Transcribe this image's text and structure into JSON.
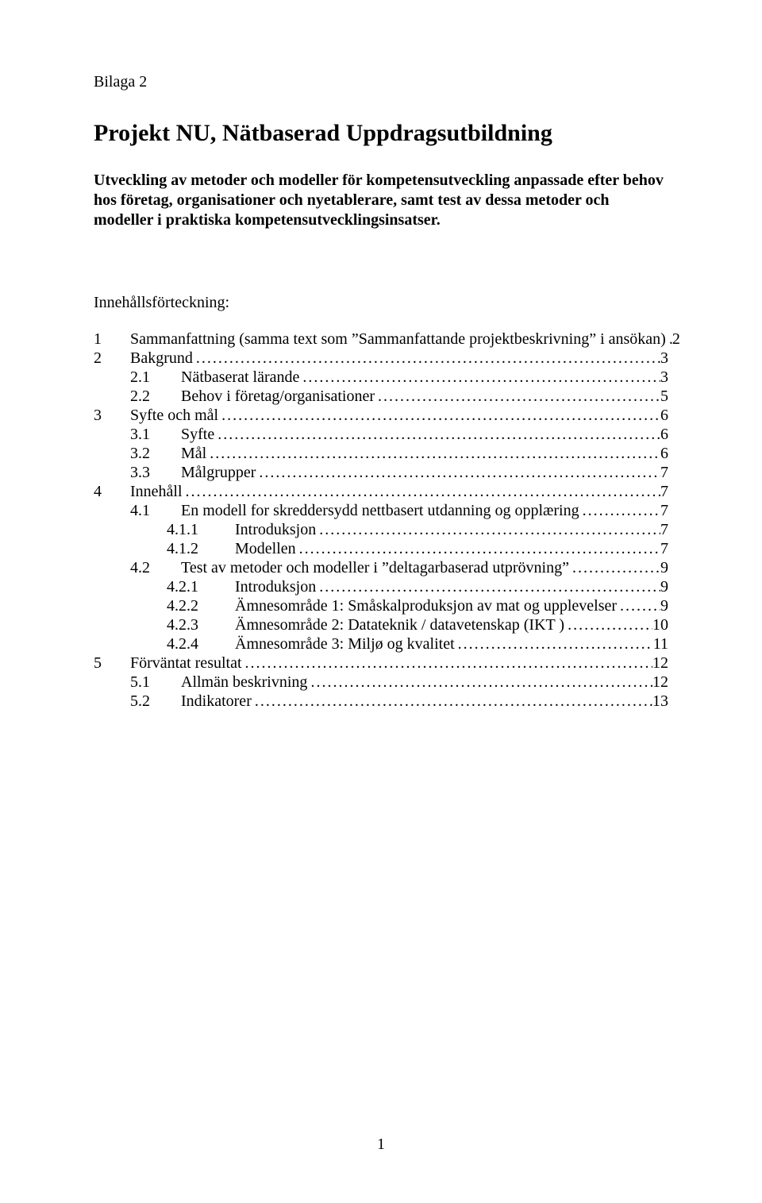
{
  "document": {
    "header_tag": "Bilaga 2",
    "title": "Projekt NU, Nätbaserad Uppdragsutbildning",
    "subtitle": "Utveckling av metoder och modeller för kompetensutveckling anpassade efter behov hos företag, organisationer och nyetablerare, samt test av dessa metoder och modeller i praktiska kompetensutvecklingsinsatser.",
    "toc_heading": "Innehållsförteckning:",
    "page_number": "1",
    "font_family": "Times New Roman",
    "text_color": "#000000",
    "background_color": "#ffffff",
    "title_fontsize": 30,
    "body_fontsize": 20,
    "toc": [
      {
        "indent": 0,
        "num": "1",
        "label": "Sammanfattning (samma text som ”Sammanfattande projektbeskrivning” i ansökan)",
        "page": "2"
      },
      {
        "indent": 0,
        "num": "2",
        "label": "Bakgrund",
        "page": "3"
      },
      {
        "indent": 1,
        "num": "2.1",
        "label": "Nätbaserat lärande",
        "page": "3"
      },
      {
        "indent": 1,
        "num": "2.2",
        "label": "Behov i företag/organisationer",
        "page": "5"
      },
      {
        "indent": 0,
        "num": "3",
        "label": "Syfte och mål",
        "page": "6"
      },
      {
        "indent": 1,
        "num": "3.1",
        "label": "Syfte",
        "page": "6"
      },
      {
        "indent": 1,
        "num": "3.2",
        "label": "Mål",
        "page": "6"
      },
      {
        "indent": 1,
        "num": "3.3",
        "label": "Målgrupper",
        "page": "7"
      },
      {
        "indent": 0,
        "num": "4",
        "label": "Innehåll",
        "page": "7"
      },
      {
        "indent": 1,
        "num": "4.1",
        "label": "En modell for skreddersydd nettbasert utdanning og opplæring",
        "page": "7"
      },
      {
        "indent": 2,
        "num": "4.1.1",
        "label": "Introduksjon",
        "page": "7"
      },
      {
        "indent": 2,
        "num": "4.1.2",
        "label": "Modellen",
        "page": "7"
      },
      {
        "indent": 1,
        "num": "4.2",
        "label": "Test av metoder och modeller i  ”deltagarbaserad utprövning”",
        "page": "9"
      },
      {
        "indent": 2,
        "num": "4.2.1",
        "label": "Introduksjon",
        "page": "9"
      },
      {
        "indent": 2,
        "num": "4.2.2",
        "label": "Ämnesområde 1: Småskalproduksjon av mat og upplevelser",
        "page": "9"
      },
      {
        "indent": 2,
        "num": "4.2.3",
        "label": "Ämnesområde 2: Datateknik / datavetenskap (IKT )",
        "page": "10"
      },
      {
        "indent": 2,
        "num": "4.2.4",
        "label": "Ämnesområde 3: Miljø og kvalitet",
        "page": "11"
      },
      {
        "indent": 0,
        "num": "5",
        "label": "Förväntat resultat",
        "page": "12"
      },
      {
        "indent": 1,
        "num": "5.1",
        "label": "Allmän beskrivning",
        "page": "12"
      },
      {
        "indent": 1,
        "num": "5.2",
        "label": "Indikatorer",
        "page": "13"
      }
    ]
  }
}
